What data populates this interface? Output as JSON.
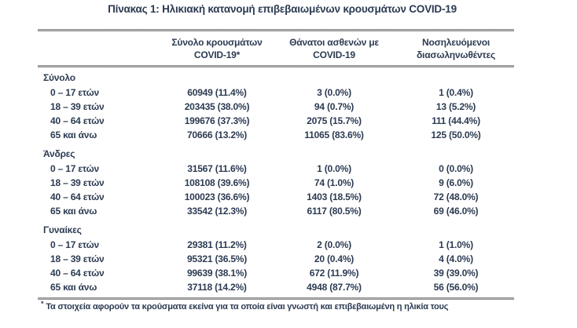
{
  "title": "Πίνακας 1: Ηλικιακή κατανομή επιβεβαιωμένων κρουσμάτων COVID-19",
  "table": {
    "column_headers": [
      {
        "line1": "Σύνολο κρουσμάτων",
        "line2": "COVID-19*"
      },
      {
        "line1": "Θάνατοι ασθενών με",
        "line2": "COVID-19"
      },
      {
        "line1": "Νοσηλευόμενοι",
        "line2": "διασωληνωθέντες"
      }
    ],
    "sections": [
      {
        "label": "Σύνολο",
        "rows": [
          {
            "label": "0 – 17 ετών",
            "cases": "60949 (11.4%)",
            "deaths": "3 (0.0%)",
            "intubated": "1 (0.4%)"
          },
          {
            "label": "18 – 39 ετών",
            "cases": "203435 (38.0%)",
            "deaths": "94 (0.7%)",
            "intubated": "13 (5.2%)"
          },
          {
            "label": "40 – 64 ετών",
            "cases": "199676 (37.3%)",
            "deaths": "2075 (15.7%)",
            "intubated": "111 (44.4%)"
          },
          {
            "label": "65 και άνω",
            "cases": "70666 (13.2%)",
            "deaths": "11065 (83.6%)",
            "intubated": "125 (50.0%)"
          }
        ]
      },
      {
        "label": "Άνδρες",
        "rows": [
          {
            "label": "0 – 17 ετών",
            "cases": "31567 (11.6%)",
            "deaths": "1 (0.0%)",
            "intubated": "0 (0.0%)"
          },
          {
            "label": "18 – 39 ετών",
            "cases": "108108 (39.6%)",
            "deaths": "74 (1.0%)",
            "intubated": "9 (6.0%)"
          },
          {
            "label": "40 – 64 ετών",
            "cases": "100023 (36.6%)",
            "deaths": "1403 (18.5%)",
            "intubated": "72 (48.0%)"
          },
          {
            "label": "65 και άνω",
            "cases": "33542 (12.3%)",
            "deaths": "6117 (80.5%)",
            "intubated": "69 (46.0%)"
          }
        ]
      },
      {
        "label": "Γυναίκες",
        "rows": [
          {
            "label": "0 – 17 ετών",
            "cases": "29381 (11.2%)",
            "deaths": "2 (0.0%)",
            "intubated": "1 (1.0%)"
          },
          {
            "label": "18 – 39 ετών",
            "cases": "95321 (36.5%)",
            "deaths": "20 (0.4%)",
            "intubated": "4 (4.0%)"
          },
          {
            "label": "40 – 64 ετών",
            "cases": "99639 (38.1%)",
            "deaths": "672 (11.9%)",
            "intubated": "39 (39.0%)"
          },
          {
            "label": "65 και άνω",
            "cases": "37118 (14.2%)",
            "deaths": "4948 (87.7%)",
            "intubated": "56 (56.0%)"
          }
        ]
      }
    ]
  },
  "footnote": {
    "marker": "*",
    "text": "Τα στοιχεία αφορούν τα κρούσματα εκείνα για τα οποία είναι γνωστή και επιβεβαιωμένη η ηλικία τους"
  },
  "colors": {
    "text": "#2c3b52",
    "border": "#767676",
    "background": "#ffffff"
  }
}
